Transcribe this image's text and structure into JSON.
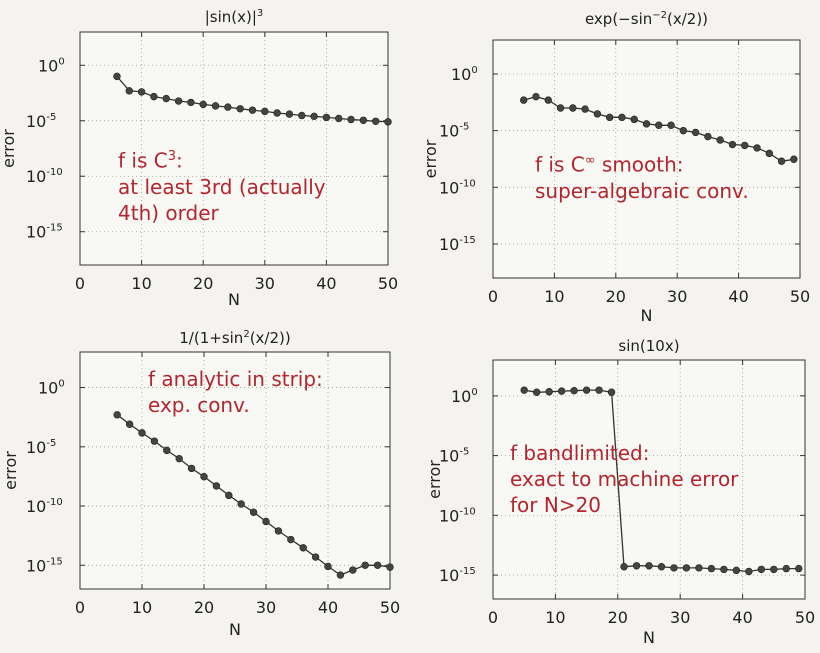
{
  "colors": {
    "annotation": "#b3262d",
    "line": "#333333",
    "marker": "#444444"
  },
  "chart_data": [
    {
      "type": "line",
      "title_base": "|sin(x)|",
      "title_sup": "3",
      "xlabel": "N",
      "ylabel": "error",
      "y_scale": "log",
      "xlim": [
        0,
        50
      ],
      "ylim": [
        1e-18,
        1000.0
      ],
      "x_ticks": [
        "0",
        "10",
        "20",
        "30",
        "40",
        "50"
      ],
      "y_ticks": [
        "10^0",
        "10^-5",
        "10^-10",
        "10^-15"
      ],
      "grid": true,
      "x": [
        6,
        8,
        10,
        12,
        14,
        16,
        18,
        20,
        22,
        24,
        26,
        28,
        30,
        32,
        34,
        36,
        38,
        40,
        42,
        44,
        46,
        48,
        50
      ],
      "values": [
        0.1,
        0.005,
        0.004,
        0.0015,
        0.001,
        0.0006,
        0.00045,
        0.0003,
        0.00022,
        0.00017,
        0.00012,
        9e-05,
        7e-05,
        5e-05,
        4e-05,
        3e-05,
        2.5e-05,
        2e-05,
        1.6e-05,
        1.3e-05,
        1.1e-05,
        9e-06,
        8e-06
      ],
      "annotation": {
        "line1_pre": "f is C",
        "line1_sup": "3",
        "line1_post": ":",
        "line2": "at least 3rd (actually",
        "line3": "4th) order"
      }
    },
    {
      "type": "line",
      "title_base": "exp(−sin",
      "title_sup": "−2",
      "title_post": "(x/2))",
      "xlabel": "N",
      "ylabel": "error",
      "y_scale": "log",
      "xlim": [
        0,
        50
      ],
      "ylim": [
        1e-18,
        1000.0
      ],
      "x_ticks": [
        "0",
        "10",
        "20",
        "30",
        "40",
        "50"
      ],
      "y_ticks": [
        "10^0",
        "10^-5",
        "10^-10",
        "10^-15"
      ],
      "grid": true,
      "x": [
        5,
        7,
        9,
        11,
        13,
        15,
        17,
        19,
        21,
        23,
        25,
        27,
        29,
        31,
        33,
        35,
        37,
        39,
        41,
        43,
        45,
        47,
        49
      ],
      "values": [
        0.005,
        0.01,
        0.005,
        0.001,
        0.001,
        0.0008,
        0.0003,
        0.00015,
        0.00015,
        0.0001,
        4e-05,
        3e-05,
        3e-05,
        1e-05,
        7e-06,
        3e-06,
        1.5e-06,
        6e-07,
        5e-07,
        3e-07,
        1e-07,
        2e-08,
        3e-08
      ],
      "annotation": {
        "line1_pre": "f is C",
        "line1_sup": "∞",
        "line1_post": " smooth:",
        "line2": "super-algebraic conv."
      }
    },
    {
      "type": "line",
      "title_base": "1/(1+sin",
      "title_sup": "2",
      "title_post": "(x/2))",
      "xlabel": "N",
      "ylabel": "error",
      "y_scale": "log",
      "xlim": [
        0,
        50
      ],
      "ylim": [
        1e-17,
        1000.0
      ],
      "x_ticks": [
        "0",
        "10",
        "20",
        "30",
        "40",
        "50"
      ],
      "y_ticks": [
        "10^0",
        "10^-5",
        "10^-10",
        "10^-15"
      ],
      "grid": true,
      "x": [
        6,
        8,
        10,
        12,
        14,
        16,
        18,
        20,
        22,
        24,
        26,
        28,
        30,
        32,
        34,
        36,
        38,
        40,
        42,
        44,
        46,
        48,
        50
      ],
      "values": [
        0.005,
        0.0008,
        0.00015,
        3e-05,
        5e-06,
        1e-06,
        1.5e-07,
        3e-08,
        5e-09,
        8e-10,
        1.5e-10,
        3e-11,
        5e-12,
        8e-13,
        1.5e-13,
        3e-14,
        5e-15,
        8e-16,
        1.5e-16,
        4e-16,
        1e-15,
        1e-15,
        7e-16
      ],
      "annotation": {
        "line1": "f analytic in strip:",
        "line2": "exp. conv."
      }
    },
    {
      "type": "line",
      "title_base": "sin(10x)",
      "xlabel": "N",
      "ylabel": "error",
      "y_scale": "log",
      "xlim": [
        0,
        50
      ],
      "ylim": [
        1e-17,
        1000.0
      ],
      "x_ticks": [
        "0",
        "10",
        "20",
        "30",
        "40",
        "50"
      ],
      "y_ticks": [
        "10^0",
        "10^-5",
        "10^-10",
        "10^-15"
      ],
      "grid": true,
      "x": [
        5,
        7,
        9,
        11,
        13,
        15,
        17,
        19,
        21,
        23,
        25,
        27,
        29,
        31,
        33,
        35,
        37,
        39,
        41,
        43,
        45,
        47,
        49
      ],
      "values": [
        3,
        2,
        2.2,
        2.5,
        2.7,
        3,
        3,
        2,
        5e-15,
        6e-15,
        6e-15,
        5e-15,
        4e-15,
        4e-15,
        4e-15,
        3.5e-15,
        3e-15,
        2.5e-15,
        2e-15,
        3e-15,
        3e-15,
        3.5e-15,
        3.5e-15
      ],
      "annotation": {
        "line1": "f bandlimited:",
        "line2": "exact to machine error",
        "line3": "for N>20"
      }
    }
  ]
}
